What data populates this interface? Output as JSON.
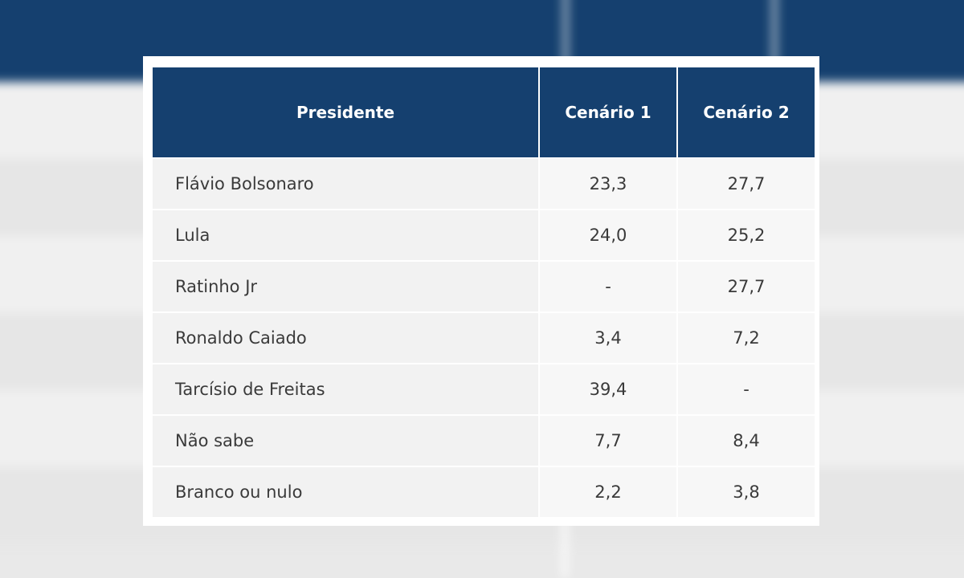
{
  "table": {
    "header": [
      "Presidente",
      "Cenário 1",
      "Cenário 2"
    ],
    "rows": [
      [
        "Flávio Bolsonaro",
        "23,3",
        "27,7"
      ],
      [
        "Lula",
        "24,0",
        "25,2"
      ],
      [
        "Ratinho Jr",
        "-",
        "27,7"
      ],
      [
        "Ronaldo Caiado",
        "3,4",
        "7,2"
      ],
      [
        "Tarcísio de Freitas",
        "39,4",
        "-"
      ],
      [
        "Não sabe",
        "7,7",
        "8,4"
      ],
      [
        "Branco ou nulo",
        "2,2",
        "3,8"
      ]
    ]
  }
}
